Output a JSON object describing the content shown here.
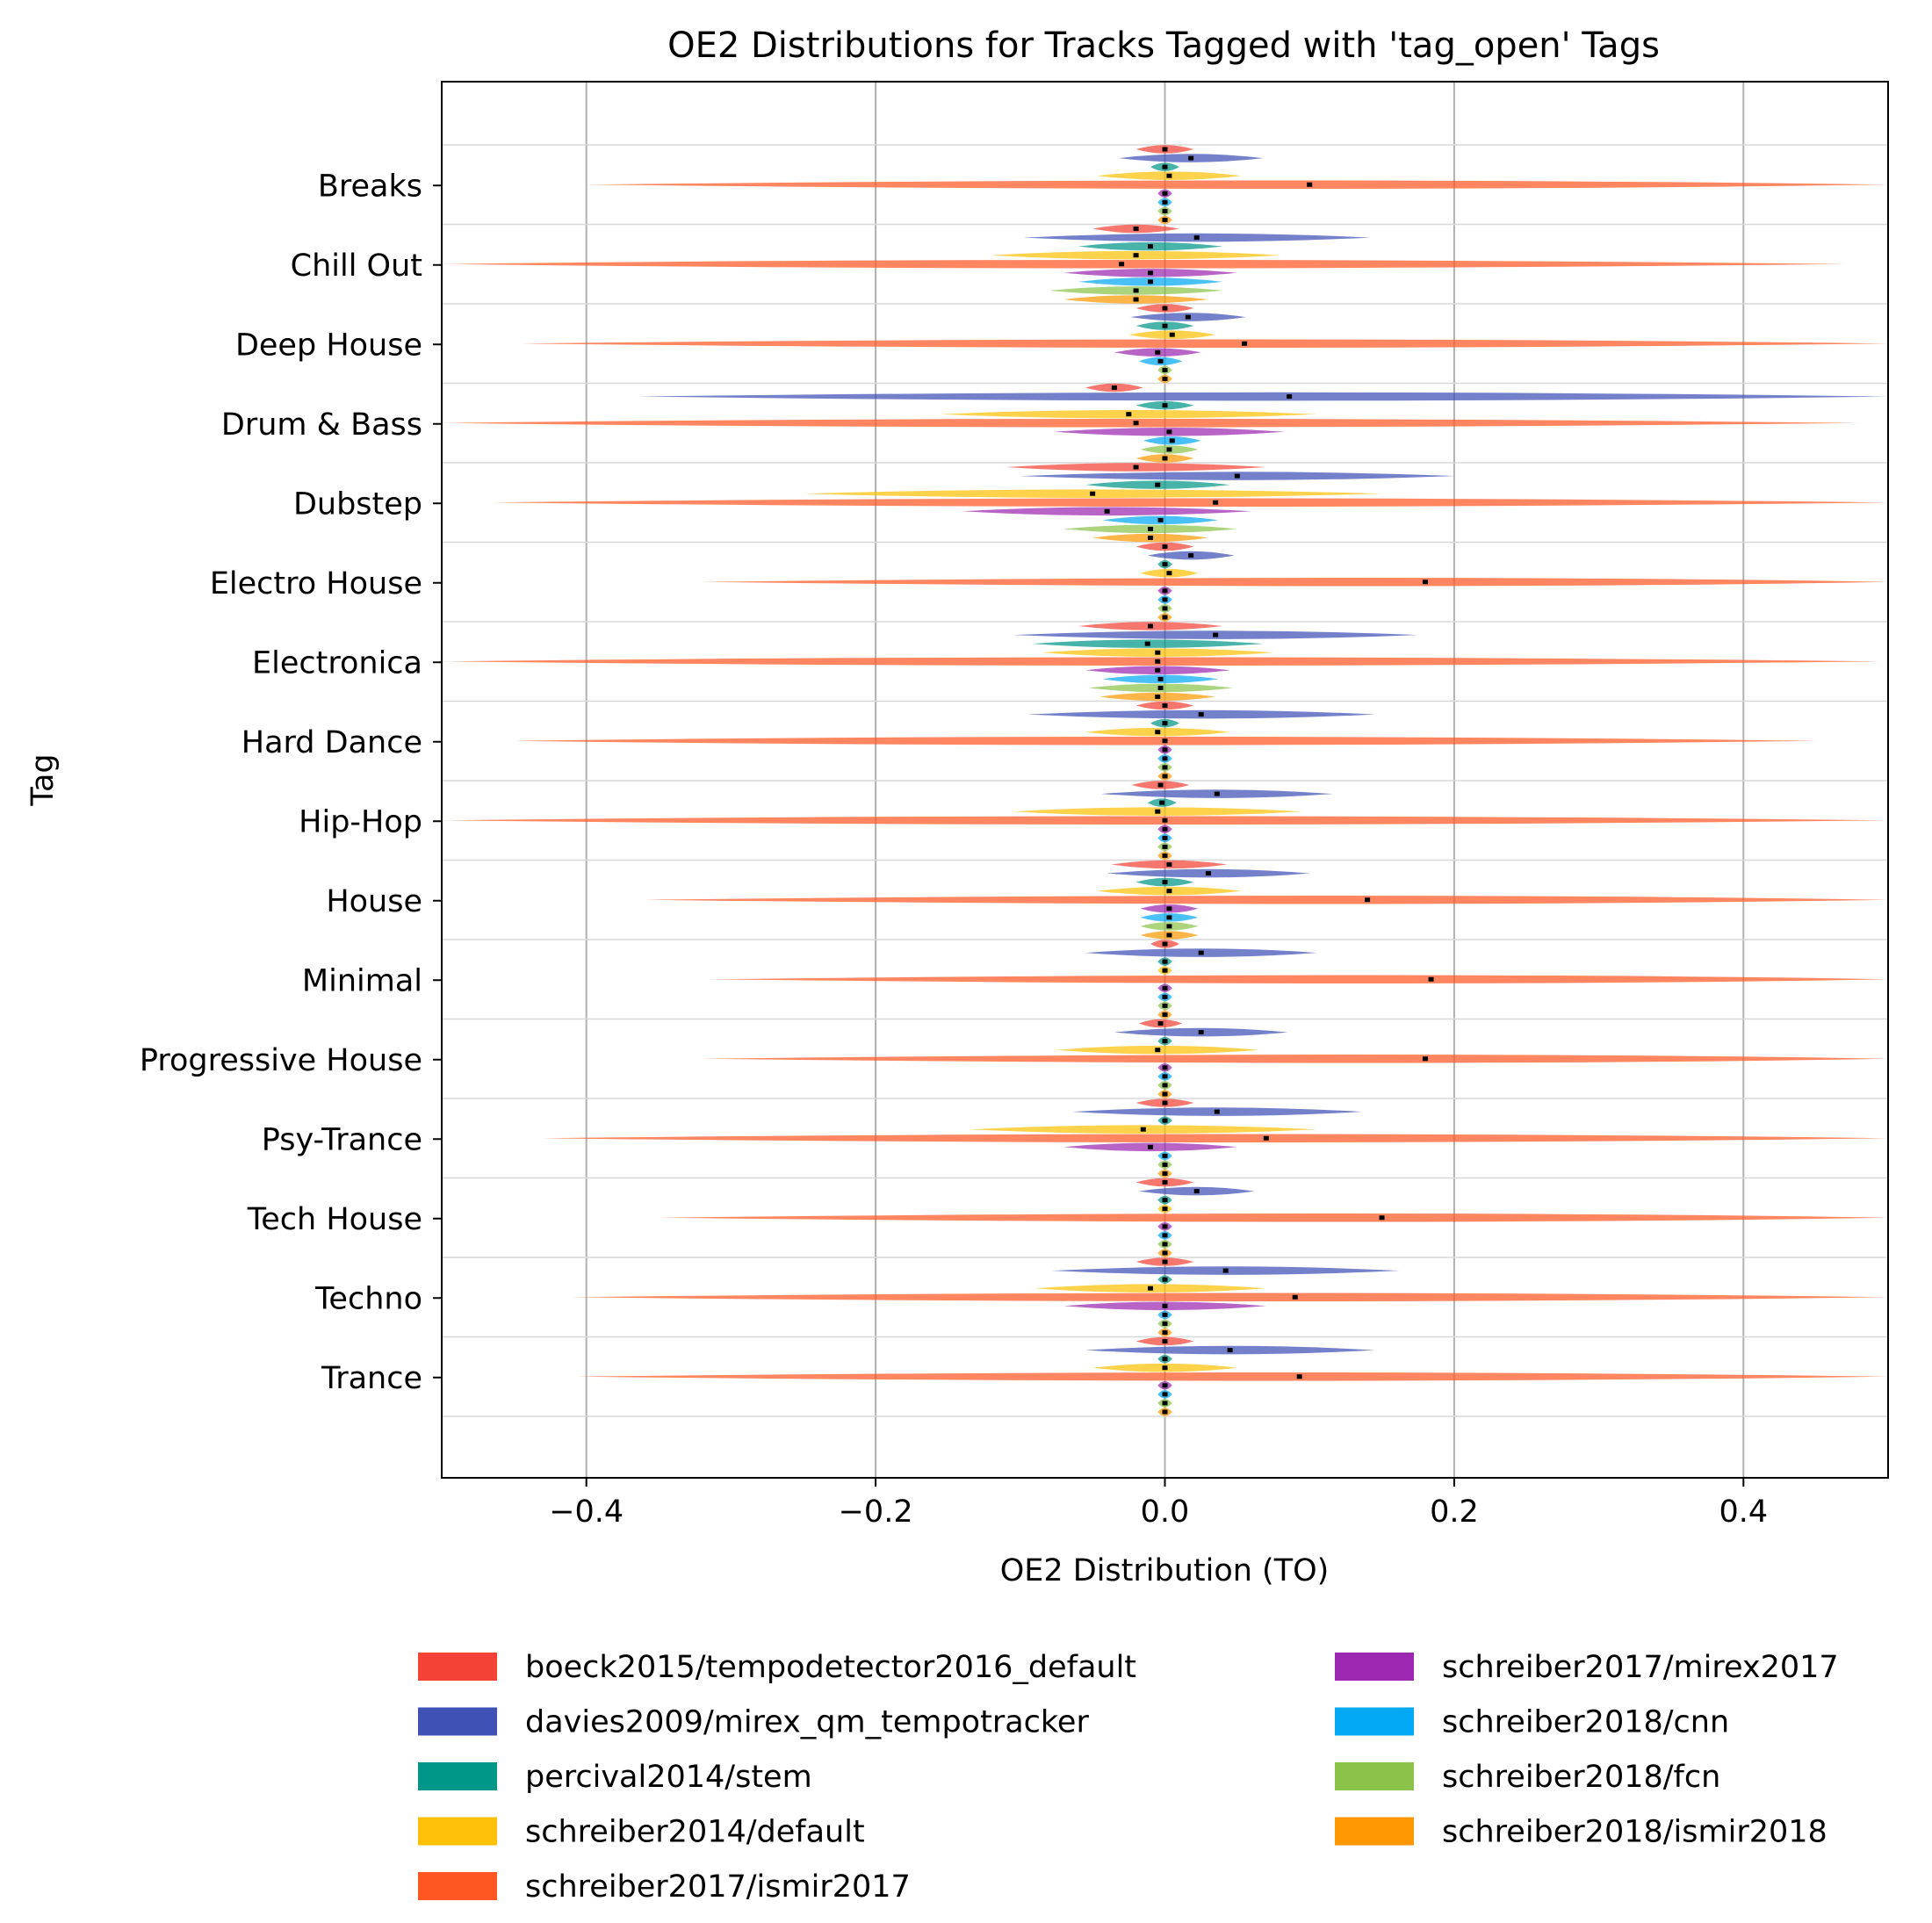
{
  "chart_data": {
    "type": "violin",
    "title": "OE2 Distributions for Tracks Tagged with 'tag_open' Tags",
    "xlabel": "OE2 Distribution (TO)",
    "ylabel": "Tag",
    "xlim": [
      -0.5,
      0.5
    ],
    "xticks": [
      -0.4,
      -0.2,
      0.0,
      0.2,
      0.4
    ],
    "xtick_labels": [
      "−0.4",
      "−0.2",
      "0.0",
      "0.2",
      "0.4"
    ],
    "grid": "x",
    "legend_position": "bottom",
    "categories": [
      "Breaks",
      "Chill Out",
      "Deep House",
      "Drum & Bass",
      "Dubstep",
      "Electro House",
      "Electronica",
      "Hard Dance",
      "Hip-Hop",
      "House",
      "Minimal",
      "Progressive House",
      "Psy-Trance",
      "Tech House",
      "Techno",
      "Trance"
    ],
    "series": [
      {
        "name": "boeck2015/tempodetector2016_default",
        "color": "#f44336",
        "medians": [
          0.0,
          -0.02,
          0.0,
          -0.035,
          -0.02,
          0.0,
          -0.01,
          0.0,
          -0.003,
          0.003,
          0.0,
          -0.003,
          0.0,
          0.0,
          0.0,
          0.0
        ],
        "spread": [
          0.02,
          0.03,
          0.02,
          0.02,
          0.09,
          0.02,
          0.05,
          0.02,
          0.02,
          0.04,
          0.01,
          0.015,
          0.02,
          0.02,
          0.02,
          0.02
        ]
      },
      {
        "name": "davies2009/mirex_qm_tempotracker",
        "color": "#3f51b5",
        "medians": [
          0.018,
          0.022,
          0.016,
          0.086,
          0.05,
          0.018,
          0.035,
          0.025,
          0.036,
          0.03,
          0.025,
          0.025,
          0.036,
          0.022,
          0.042,
          0.045
        ],
        "spread": [
          0.05,
          0.12,
          0.04,
          0.45,
          0.15,
          0.03,
          0.14,
          0.12,
          0.08,
          0.07,
          0.08,
          0.06,
          0.1,
          0.04,
          0.12,
          0.1
        ]
      },
      {
        "name": "percival2014/stem",
        "color": "#009688",
        "medians": [
          0.0,
          -0.01,
          0.0,
          0.0,
          -0.005,
          0.0,
          -0.012,
          0.0,
          -0.002,
          0.0,
          0.0,
          0.0,
          0.0,
          0.0,
          0.0,
          0.0
        ],
        "spread": [
          0.01,
          0.05,
          0.02,
          0.02,
          0.05,
          0.005,
          0.08,
          0.01,
          0.01,
          0.02,
          0.005,
          0.005,
          0.005,
          0.005,
          0.005,
          0.005
        ]
      },
      {
        "name": "schreiber2014/default",
        "color": "#ffc107",
        "medians": [
          0.003,
          -0.02,
          0.005,
          -0.025,
          -0.05,
          0.003,
          -0.005,
          -0.005,
          -0.005,
          0.003,
          0.0,
          -0.005,
          -0.015,
          0.0,
          -0.01,
          0.0
        ],
        "spread": [
          0.05,
          0.1,
          0.03,
          0.13,
          0.2,
          0.02,
          0.08,
          0.05,
          0.1,
          0.05,
          0.005,
          0.07,
          0.12,
          0.005,
          0.08,
          0.05
        ]
      },
      {
        "name": "schreiber2017/ismir2017",
        "color": "#ff5722",
        "medians": [
          0.1,
          -0.03,
          0.055,
          -0.02,
          0.035,
          0.18,
          -0.005,
          0.0,
          0.0,
          0.14,
          0.184,
          0.18,
          0.07,
          0.15,
          0.09,
          0.093
        ],
        "spread": [
          0.5,
          0.5,
          0.5,
          0.5,
          0.5,
          0.5,
          0.5,
          0.45,
          0.5,
          0.5,
          0.5,
          0.5,
          0.5,
          0.5,
          0.5,
          0.5
        ]
      },
      {
        "name": "schreiber2017/mirex2017",
        "color": "#9c27b0",
        "medians": [
          0.0,
          -0.01,
          -0.005,
          0.003,
          -0.04,
          0.0,
          -0.005,
          0.0,
          0.0,
          0.003,
          0.0,
          0.0,
          -0.01,
          0.0,
          0.0,
          0.0
        ],
        "spread": [
          0.005,
          0.06,
          0.03,
          0.08,
          0.1,
          0.005,
          0.05,
          0.005,
          0.005,
          0.02,
          0.005,
          0.005,
          0.06,
          0.005,
          0.07,
          0.005
        ]
      },
      {
        "name": "schreiber2018/cnn",
        "color": "#03a9f4",
        "medians": [
          0.0,
          -0.01,
          -0.003,
          0.005,
          -0.003,
          0.0,
          -0.003,
          0.0,
          0.0,
          0.003,
          0.0,
          0.0,
          0.0,
          0.0,
          0.0,
          0.0
        ],
        "spread": [
          0.005,
          0.05,
          0.015,
          0.02,
          0.04,
          0.005,
          0.04,
          0.005,
          0.005,
          0.02,
          0.005,
          0.005,
          0.005,
          0.005,
          0.005,
          0.005
        ]
      },
      {
        "name": "schreiber2018/fcn",
        "color": "#8bc34a",
        "medians": [
          0.0,
          -0.02,
          0.0,
          0.003,
          -0.01,
          0.0,
          -0.003,
          0.0,
          0.0,
          0.003,
          0.0,
          0.0,
          0.0,
          0.0,
          0.0,
          0.0
        ],
        "spread": [
          0.005,
          0.06,
          0.005,
          0.02,
          0.06,
          0.005,
          0.05,
          0.005,
          0.005,
          0.02,
          0.005,
          0.005,
          0.005,
          0.005,
          0.005,
          0.005
        ]
      },
      {
        "name": "schreiber2018/ismir2018",
        "color": "#ff9800",
        "medians": [
          0.0,
          -0.02,
          0.0,
          0.0,
          -0.01,
          0.0,
          -0.005,
          0.0,
          0.0,
          0.003,
          0.0,
          0.0,
          0.0,
          0.0,
          0.0,
          0.0
        ],
        "spread": [
          0.005,
          0.05,
          0.005,
          0.02,
          0.04,
          0.005,
          0.04,
          0.005,
          0.005,
          0.02,
          0.005,
          0.005,
          0.005,
          0.005,
          0.005,
          0.005
        ]
      }
    ]
  }
}
